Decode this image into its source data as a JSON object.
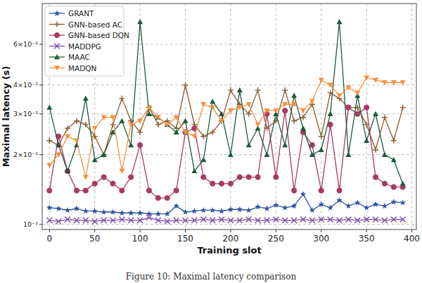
{
  "chart_data": {
    "type": "line",
    "caption": "Figure 10: Maximal latency comparison",
    "x_label": "Training slot",
    "y_label": "Maximal latency (s)",
    "log": "y",
    "grid": true,
    "legend": "upper-left",
    "xlim": [
      -8,
      405
    ],
    "xticks": [
      0,
      50,
      100,
      150,
      200,
      250,
      300,
      350,
      400
    ],
    "ylim": [
      0.095,
      0.9
    ],
    "yticks": [
      {
        "value": 0.1,
        "label": "10⁻¹"
      },
      {
        "value": 0.2,
        "label": "2×10⁻¹"
      },
      {
        "value": 0.3,
        "label": "3×10⁻¹"
      },
      {
        "value": 0.4,
        "label": "4×10⁻¹"
      },
      {
        "value": 0.6,
        "label": "6×10⁻¹"
      }
    ],
    "x": [
      0,
      10,
      20,
      30,
      40,
      50,
      60,
      70,
      80,
      90,
      100,
      110,
      120,
      130,
      140,
      150,
      160,
      170,
      180,
      190,
      200,
      210,
      220,
      230,
      240,
      250,
      260,
      270,
      280,
      290,
      300,
      310,
      320,
      330,
      340,
      350,
      360,
      370,
      380,
      390
    ],
    "series": [
      {
        "name": "GRANT",
        "color": "#2f55a4",
        "marker": "star",
        "values": [
          0.118,
          0.117,
          0.115,
          0.117,
          0.114,
          0.114,
          0.113,
          0.113,
          0.112,
          0.112,
          0.112,
          0.111,
          0.111,
          0.111,
          0.12,
          0.113,
          0.114,
          0.115,
          0.115,
          0.114,
          0.116,
          0.116,
          0.115,
          0.119,
          0.117,
          0.121,
          0.118,
          0.12,
          0.135,
          0.115,
          0.122,
          0.118,
          0.127,
          0.12,
          0.124,
          0.118,
          0.122,
          0.12,
          0.125,
          0.124
        ]
      },
      {
        "name": "GNN-based AC",
        "color": "#8b5a2b",
        "marker": "plus",
        "values": [
          0.23,
          0.22,
          0.26,
          0.28,
          0.27,
          0.24,
          0.2,
          0.27,
          0.35,
          0.28,
          0.25,
          0.32,
          0.27,
          0.28,
          0.26,
          0.4,
          0.27,
          0.24,
          0.25,
          0.28,
          0.38,
          0.33,
          0.3,
          0.38,
          0.26,
          0.28,
          0.38,
          0.28,
          0.29,
          0.33,
          0.24,
          0.37,
          0.35,
          0.32,
          0.32,
          0.27,
          0.21,
          0.29,
          0.23,
          0.32
        ]
      },
      {
        "name": "GNN-based DQN",
        "color": "#a83a66",
        "marker": "circle",
        "values": [
          0.14,
          0.24,
          0.17,
          0.14,
          0.14,
          0.15,
          0.16,
          0.15,
          0.14,
          0.16,
          0.22,
          0.14,
          0.13,
          0.13,
          0.14,
          0.25,
          0.26,
          0.16,
          0.15,
          0.15,
          0.15,
          0.16,
          0.16,
          0.16,
          0.3,
          0.16,
          0.31,
          0.14,
          0.25,
          0.22,
          0.14,
          0.27,
          0.14,
          0.32,
          0.3,
          0.32,
          0.16,
          0.15,
          0.145,
          0.145
        ]
      },
      {
        "name": "MADDPG",
        "color": "#7b4fa8",
        "marker": "x",
        "values": [
          0.104,
          0.103,
          0.105,
          0.104,
          0.104,
          0.103,
          0.104,
          0.104,
          0.105,
          0.104,
          0.104,
          0.107,
          0.104,
          0.103,
          0.104,
          0.104,
          0.104,
          0.105,
          0.104,
          0.105,
          0.104,
          0.104,
          0.105,
          0.104,
          0.104,
          0.105,
          0.104,
          0.104,
          0.105,
          0.104,
          0.105,
          0.105,
          0.104,
          0.105,
          0.104,
          0.105,
          0.105,
          0.104,
          0.105,
          0.105
        ]
      },
      {
        "name": "MAAC",
        "color": "#1f5a3a",
        "marker": "triangle-up",
        "values": [
          0.32,
          0.22,
          0.17,
          0.22,
          0.35,
          0.19,
          0.2,
          0.25,
          0.28,
          0.22,
          0.75,
          0.3,
          0.29,
          0.27,
          0.25,
          0.28,
          0.17,
          0.19,
          0.34,
          0.3,
          0.2,
          0.38,
          0.22,
          0.26,
          0.2,
          0.3,
          0.22,
          0.36,
          0.26,
          0.2,
          0.21,
          0.3,
          0.75,
          0.2,
          0.36,
          0.23,
          0.3,
          0.2,
          0.19,
          0.15
        ]
      },
      {
        "name": "MADQN",
        "color": "#f5913e",
        "marker": "triangle-down",
        "values": [
          0.18,
          0.2,
          0.24,
          0.23,
          0.16,
          0.26,
          0.29,
          0.29,
          0.17,
          0.27,
          0.28,
          0.32,
          0.29,
          0.27,
          0.29,
          0.25,
          0.24,
          0.33,
          0.32,
          0.28,
          0.31,
          0.32,
          0.33,
          0.27,
          0.31,
          0.31,
          0.33,
          0.33,
          0.31,
          0.34,
          0.42,
          0.4,
          0.36,
          0.39,
          0.37,
          0.43,
          0.42,
          0.41,
          0.41,
          0.41
        ]
      }
    ]
  }
}
